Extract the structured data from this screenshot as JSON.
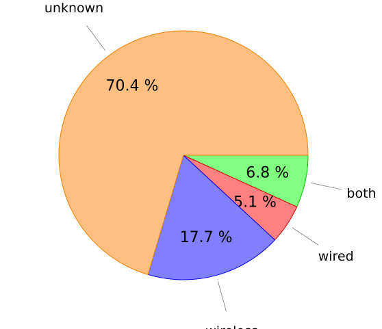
{
  "chart_data": {
    "type": "pie",
    "categories": [
      "both",
      "wired",
      "wireless",
      "unknown"
    ],
    "values": [
      6.8,
      5.1,
      17.7,
      70.4
    ],
    "value_labels": [
      "6.8 %",
      "5.1 %",
      "17.7 %",
      "70.4 %"
    ],
    "colors": [
      "#80ff80",
      "#ff8080",
      "#8080ff",
      "#ffbf80"
    ],
    "edge_colors": [
      "#00cc00",
      "#e00000",
      "#0000e0",
      "#f08000"
    ]
  }
}
